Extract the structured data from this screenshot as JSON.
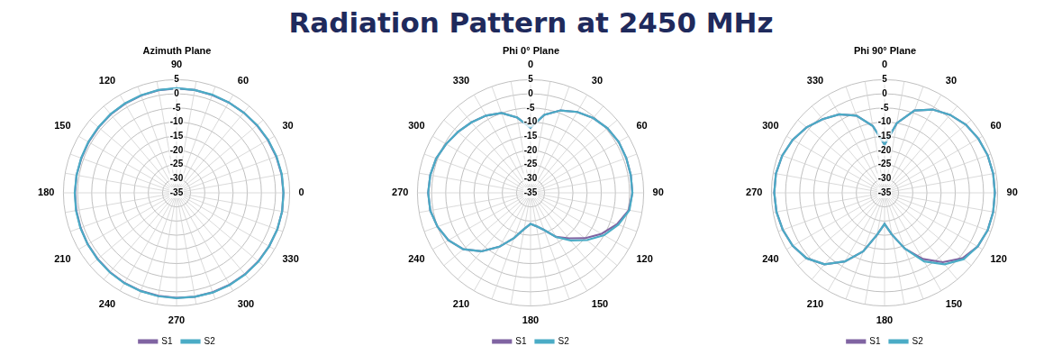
{
  "title": "Radiation Pattern at 2450 MHz",
  "chart_data": [
    {
      "type": "radar",
      "title": "Azimuth Plane",
      "categories": [
        90,
        null,
        null,
        60,
        null,
        null,
        30,
        null,
        null,
        0,
        null,
        null,
        330,
        null,
        null,
        300,
        null,
        null,
        270,
        null,
        null,
        240,
        null,
        null,
        210,
        null,
        null,
        180,
        null,
        null,
        150,
        null,
        null,
        120,
        null,
        null
      ],
      "series": [
        {
          "name": "S1",
          "color": "#8064a2",
          "values": [
            1.9,
            1.9,
            1.8,
            1.9,
            2.0,
            2.1,
            2.3,
            2.5,
            2.7,
            2.8,
            2.9,
            2.9,
            2.8,
            2.7,
            2.6,
            2.5,
            2.4,
            2.3,
            2.1,
            2.0,
            1.9,
            1.8,
            1.6,
            1.4,
            1.3,
            1.1,
            1.0,
            0.9,
            0.9,
            0.8,
            0.9,
            1.0,
            1.2,
            1.4,
            1.6,
            1.8
          ]
        },
        {
          "name": "S2",
          "color": "#4bacc6",
          "values": [
            2.0,
            1.9,
            1.9,
            1.9,
            2.0,
            2.2,
            2.4,
            2.6,
            2.8,
            2.8,
            2.9,
            2.9,
            2.8,
            2.8,
            2.7,
            2.6,
            2.5,
            2.3,
            2.2,
            2.1,
            2.0,
            1.9,
            1.7,
            1.5,
            1.3,
            1.2,
            1.1,
            1.0,
            0.9,
            0.9,
            1.0,
            1.1,
            1.3,
            1.5,
            1.7,
            1.9
          ]
        }
      ],
      "ylim": [
        -35,
        5
      ],
      "yticks": [
        -35,
        -30,
        -25,
        -20,
        -15,
        -10,
        -5,
        0,
        5
      ],
      "grid": true,
      "legend": "bottom"
    },
    {
      "type": "radar",
      "title": "Phi 0° Plane",
      "categories": [
        0,
        null,
        null,
        30,
        null,
        null,
        60,
        null,
        null,
        90,
        null,
        null,
        120,
        null,
        null,
        150,
        null,
        null,
        180,
        null,
        null,
        210,
        null,
        null,
        240,
        null,
        null,
        270,
        null,
        null,
        300,
        null,
        null,
        330,
        null,
        null
      ],
      "series": [
        {
          "name": "S1",
          "color": "#8064a2",
          "values": [
            -12,
            -7,
            -4,
            -2,
            -0.5,
            0.5,
            1,
            1,
            1,
            1,
            0.3,
            -2.5,
            -6,
            -10,
            -14,
            -17,
            -21,
            -23,
            -24,
            -22,
            -18,
            -13,
            -8,
            -4,
            -1.5,
            0,
            1,
            1.2,
            1,
            0.5,
            -0.5,
            -1.5,
            -2.5,
            -3.5,
            -5,
            -8
          ]
        },
        {
          "name": "S2",
          "color": "#4bacc6",
          "values": [
            -12,
            -7,
            -4,
            -2,
            -0.5,
            0.5,
            1,
            1,
            1,
            1,
            0.5,
            -2,
            -5,
            -9,
            -13,
            -17,
            -21,
            -23,
            -24,
            -22,
            -18,
            -13,
            -8,
            -4,
            -1.5,
            0,
            1,
            1.2,
            1,
            0.5,
            -0.5,
            -1.5,
            -2.5,
            -3.5,
            -5,
            -8
          ]
        }
      ],
      "ylim": [
        -35,
        5
      ],
      "yticks": [
        -35,
        -30,
        -25,
        -20,
        -15,
        -10,
        -5,
        0,
        5
      ],
      "grid": true,
      "legend": "bottom"
    },
    {
      "type": "radar",
      "title": "Phi 90° Plane",
      "categories": [
        0,
        null,
        null,
        30,
        null,
        null,
        60,
        null,
        null,
        90,
        null,
        null,
        120,
        null,
        null,
        150,
        null,
        null,
        180,
        null,
        null,
        210,
        null,
        null,
        240,
        null,
        null,
        270,
        null,
        null,
        300,
        null,
        null,
        330,
        null,
        null
      ],
      "series": [
        {
          "name": "S1",
          "color": "#8064a2",
          "values": [
            -18,
            -10,
            -4,
            -1,
            1,
            2.5,
            3.3,
            3.8,
            4,
            4,
            4,
            3.8,
            3,
            1,
            -3,
            -8,
            -14,
            -20,
            -24,
            -20,
            -13,
            -7,
            -2,
            1,
            2.5,
            3.3,
            3.8,
            4,
            4,
            3.5,
            2.5,
            1,
            -1,
            -3,
            -6,
            -11
          ]
        },
        {
          "name": "S2",
          "color": "#4bacc6",
          "values": [
            -18,
            -10,
            -4,
            -1,
            1,
            2.5,
            3.3,
            3.8,
            4,
            4,
            4,
            3.8,
            3,
            1.5,
            -2,
            -7,
            -14,
            -20,
            -24,
            -20,
            -13,
            -7,
            -2,
            1,
            2.5,
            3.3,
            3.8,
            4,
            4,
            3.5,
            2.5,
            1,
            -1,
            -3,
            -6,
            -11
          ]
        }
      ],
      "ylim": [
        -35,
        5
      ],
      "yticks": [
        -35,
        -30,
        -25,
        -20,
        -15,
        -10,
        -5,
        0,
        5
      ],
      "grid": true,
      "legend": "bottom"
    }
  ]
}
